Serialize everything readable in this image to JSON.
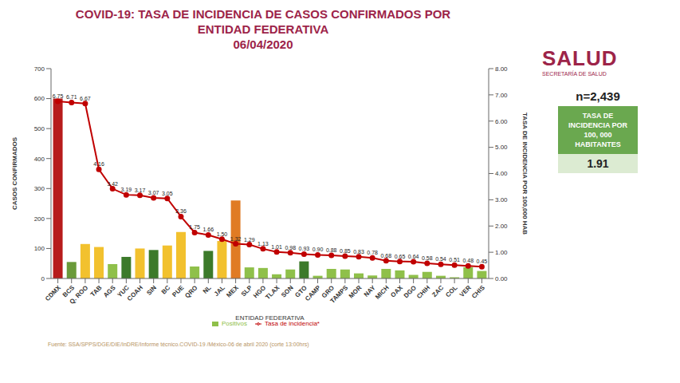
{
  "header": {
    "title": "COVID-19: TASA DE INCIDENCIA DE CASOS CONFIRMADOS POR ENTIDAD FEDERATIVA",
    "date": "06/04/2020",
    "logo": "SALUD",
    "logo_subtitle": "SECRETARÍA DE SALUD"
  },
  "panel": {
    "n": "n=2,439",
    "box_title": "TASA DE INCIDENCIA POR 100, 000 HABITANTES",
    "box_value": "1.91"
  },
  "source": "Fuente: SSA/SPPS/DGE/DIE/InDRE/Informe técnico.COVID-19 /México-06 de abril 2020 (corte 13:00hrs)",
  "chart_data": {
    "type": "bar",
    "x_label": "ENTIDAD FEDERATIVA",
    "y_label": "CASOS CONFIRMADOS",
    "y2_label": "TASA DE INCIDENCIA POR 100,000 HAB",
    "categories": [
      "CDMX",
      "BCS",
      "Q. ROO",
      "TAB",
      "AGS",
      "YUC",
      "COAH",
      "SIN",
      "BC",
      "PUE",
      "QRO",
      "NL",
      "JAL",
      "MEX",
      "SLP",
      "HGO",
      "TLAX",
      "SON",
      "GTO",
      "CAMP",
      "GRO",
      "TAMPS",
      "MOR",
      "NAY",
      "MICH",
      "OAX",
      "DGO",
      "CHIH",
      "ZAC",
      "COL",
      "VER",
      "CHIS"
    ],
    "ylim": [
      0,
      700
    ],
    "yticks": [
      0,
      100,
      200,
      300,
      400,
      500,
      600,
      700
    ],
    "y2lim": [
      0,
      8
    ],
    "y2ticks": [
      {
        "value": 0,
        "label": "0.00"
      },
      {
        "value": 1,
        "label": "1.00"
      },
      {
        "value": 2,
        "label": "2.00"
      },
      {
        "value": 3,
        "label": "3.00"
      },
      {
        "value": 4,
        "label": "4.00"
      },
      {
        "value": 5,
        "label": "5.00"
      },
      {
        "value": 6,
        "label": "6.00"
      },
      {
        "value": 7,
        "label": "7.00"
      },
      {
        "value": 8,
        "label": "8.00"
      }
    ],
    "grid": false,
    "legend": "bottom",
    "series": [
      {
        "name": "Positivos",
        "type": "bar",
        "color": "#8fc04a",
        "colors": [
          "#b71c1c",
          "#6a9a3a",
          "#f2c12e",
          "#f2c12e",
          "#8fc04a",
          "#3c7a2a",
          "#f2c12e",
          "#3c7a2a",
          "#f2c12e",
          "#f2c12e",
          "#8fc04a",
          "#3c7a2a",
          "#f2c12e",
          "#e07b24",
          "#8fc04a",
          "#8fc04a",
          "#8fc04a",
          "#8fc04a",
          "#3c7a2a",
          "#8fc04a",
          "#8fc04a",
          "#8fc04a",
          "#8fc04a",
          "#8fc04a",
          "#8fc04a",
          "#8fc04a",
          "#8fc04a",
          "#8fc04a",
          "#8fc04a",
          "#8fc04a",
          "#8fc04a",
          "#8fc04a"
        ],
        "values": [
          600,
          55,
          115,
          105,
          48,
          72,
          100,
          95,
          110,
          155,
          40,
          92,
          125,
          260,
          37,
          35,
          14,
          30,
          57,
          9,
          32,
          30,
          17,
          10,
          32,
          27,
          12,
          22,
          9,
          4,
          38,
          25
        ]
      },
      {
        "name": "Tasa de incidencia*",
        "type": "line",
        "axis": "y2",
        "color": "#c00000",
        "marker": "circle",
        "data_labels": true,
        "values": [
          6.75,
          6.71,
          6.67,
          4.16,
          3.42,
          3.19,
          3.17,
          3.07,
          3.05,
          2.36,
          1.75,
          1.66,
          1.5,
          1.32,
          1.29,
          1.13,
          1.01,
          0.98,
          0.93,
          0.9,
          0.88,
          0.85,
          0.83,
          0.78,
          0.68,
          0.65,
          0.64,
          0.58,
          0.54,
          0.51,
          0.48,
          0.45
        ],
        "value_labels": [
          "6.75",
          "6.71",
          "6.67",
          "4.16",
          "3.42",
          "3.19",
          "3.17",
          "3.07",
          "3.05",
          "2.36",
          "1.75",
          "1.66",
          "1.50",
          "1.32",
          "1.29",
          "1.13",
          "1.01",
          "0.98",
          "0.93",
          "0.90",
          "0.88",
          "0.85",
          "0.83",
          "0.78",
          "0.68",
          "0.65",
          "0.64",
          "0.58",
          "0.54",
          "0.51",
          "0.48",
          "0.45"
        ]
      }
    ]
  }
}
